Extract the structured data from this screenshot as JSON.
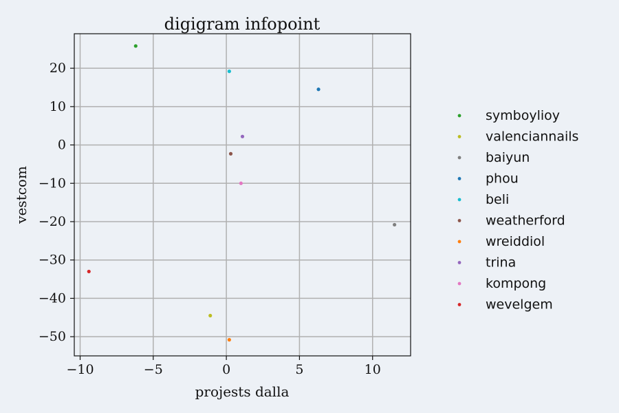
{
  "chart_data": {
    "type": "scatter",
    "title": "digigram infopoint",
    "xlabel": "projests dalla",
    "ylabel": "vestcom",
    "xlim": [
      -10.4,
      12.6
    ],
    "ylim": [
      -55,
      29
    ],
    "xticks": [
      -10,
      -5,
      0,
      5,
      10
    ],
    "yticks": [
      -50,
      -40,
      -30,
      -20,
      -10,
      0,
      10,
      20
    ],
    "grid": true,
    "legend_position": "right",
    "series": [
      {
        "name": "symboylioy",
        "color": "#2ca02c",
        "x": -6.2,
        "y": 25.8
      },
      {
        "name": "valenciannails",
        "color": "#bcbd22",
        "x": -1.1,
        "y": -44.5
      },
      {
        "name": "baiyun",
        "color": "#7f7f7f",
        "x": 11.5,
        "y": -20.8
      },
      {
        "name": "phou",
        "color": "#1f77b4",
        "x": 6.3,
        "y": 14.5
      },
      {
        "name": "beli",
        "color": "#17becf",
        "x": 0.2,
        "y": 19.2
      },
      {
        "name": "weatherford",
        "color": "#8c564b",
        "x": 0.3,
        "y": -2.3
      },
      {
        "name": "wreiddiol",
        "color": "#ff7f0e",
        "x": 0.2,
        "y": -50.8
      },
      {
        "name": "trina",
        "color": "#9467bd",
        "x": 1.1,
        "y": 2.2
      },
      {
        "name": "kompong",
        "color": "#e377c2",
        "x": 1.0,
        "y": -10.0
      },
      {
        "name": "wevelgem",
        "color": "#d62728",
        "x": -9.4,
        "y": -33.0
      }
    ]
  }
}
